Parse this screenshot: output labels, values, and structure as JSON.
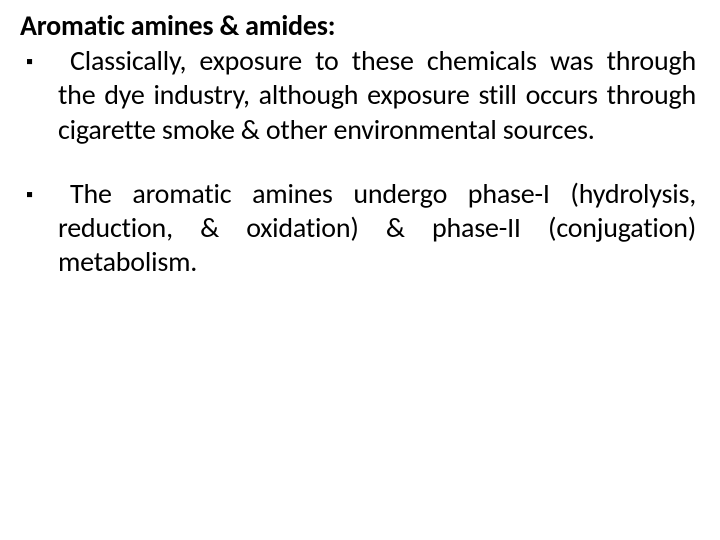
{
  "text_color": "#000000",
  "background_color": "#ffffff",
  "font_family": "Calibri, 'Segoe UI', Arial, sans-serif",
  "heading": "Aromatic amines & amides:",
  "heading_fontsize": 28,
  "heading_fontweight": 700,
  "bullet_marker": "▪",
  "body_fontsize": 28,
  "bullets": [
    {
      "text": "Classically, exposure to these chemicals was through the dye industry, although exposure still occurs through cigarette smoke & other environmental sources."
    },
    {
      "text": "The aromatic amines undergo phase-I (hydrolysis, reduction, & oxidation) & phase-II (conjugation) metabolism."
    }
  ]
}
